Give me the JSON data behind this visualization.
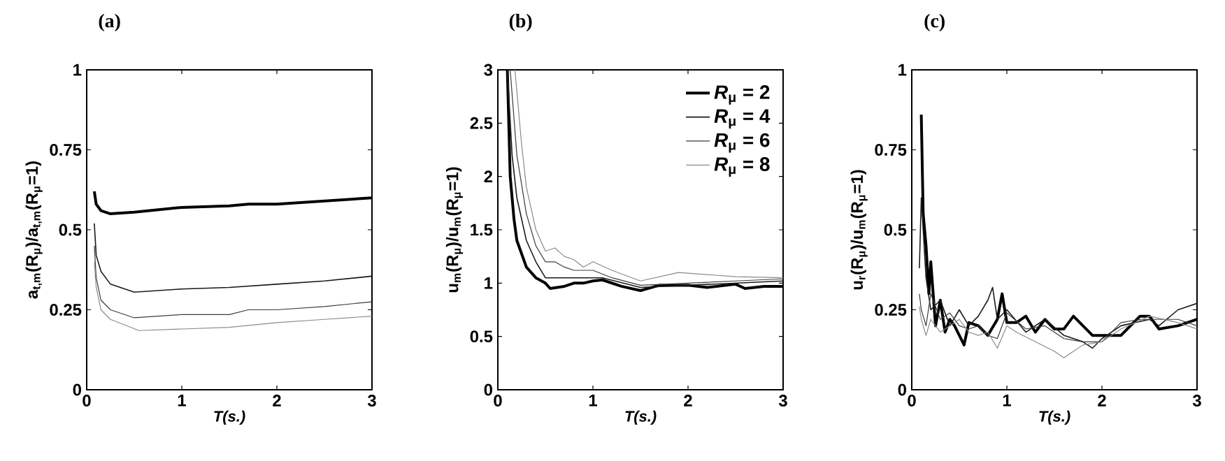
{
  "chart_data": [
    {
      "type": "line",
      "title": "(a)",
      "xlabel": "T(s.)",
      "ylabel": "a$_{t,m}$(R$_{μ}$)/a$_{t,m}$(R$_{μ}$=1)",
      "xlim": [
        0,
        3
      ],
      "ylim": [
        0,
        1
      ],
      "xticks": [
        0,
        1,
        2,
        3
      ],
      "yticks": [
        0,
        0.25,
        0.5,
        0.75,
        1
      ],
      "series": [
        {
          "color": "#000000",
          "x": [
            0.08,
            0.1,
            0.15,
            0.25,
            0.5,
            1,
            1.5,
            1.7,
            2,
            2.5,
            3
          ],
          "values": [
            0.62,
            0.58,
            0.56,
            0.55,
            0.555,
            0.57,
            0.575,
            0.58,
            0.58,
            0.59,
            0.6
          ]
        },
        {
          "color": "#1a1a1a",
          "x": [
            0.08,
            0.1,
            0.15,
            0.25,
            0.5,
            0.75,
            1,
            1.5,
            2,
            2.5,
            3
          ],
          "values": [
            0.52,
            0.42,
            0.37,
            0.33,
            0.305,
            0.31,
            0.315,
            0.32,
            0.33,
            0.34,
            0.355
          ]
        },
        {
          "color": "#3c3c3c",
          "x": [
            0.08,
            0.1,
            0.15,
            0.25,
            0.5,
            1,
            1.5,
            1.7,
            2,
            2.5,
            3
          ],
          "values": [
            0.45,
            0.35,
            0.28,
            0.25,
            0.225,
            0.235,
            0.235,
            0.25,
            0.25,
            0.26,
            0.275
          ]
        },
        {
          "color": "#8a8a8a",
          "x": [
            0.08,
            0.1,
            0.15,
            0.25,
            0.55,
            1,
            1.5,
            2,
            2.5,
            3
          ],
          "values": [
            0.4,
            0.32,
            0.25,
            0.22,
            0.185,
            0.19,
            0.195,
            0.21,
            0.22,
            0.23
          ]
        }
      ]
    },
    {
      "type": "line",
      "title": "(b)",
      "xlabel": "T(s.)",
      "ylabel": "u$_{m}$(R$_{μ}$)/u$_{m}$(R$_{μ}$=1)",
      "xlim": [
        0,
        3
      ],
      "ylim": [
        0,
        3
      ],
      "xticks": [
        0,
        1,
        2,
        3
      ],
      "yticks": [
        0,
        0.5,
        1,
        1.5,
        2,
        2.5,
        3
      ],
      "legend": "top right",
      "series": [
        {
          "name": "*R*$_{μ}$ = 2",
          "color": "#000000",
          "x": [
            0.1,
            0.13,
            0.17,
            0.2,
            0.3,
            0.4,
            0.5,
            0.55,
            0.7,
            0.8,
            0.9,
            1,
            1.1,
            1.3,
            1.5,
            1.7,
            2,
            2.2,
            2.5,
            2.6,
            2.8,
            3
          ],
          "values": [
            3,
            2,
            1.6,
            1.4,
            1.15,
            1.05,
            1.0,
            0.95,
            0.97,
            1.0,
            1.0,
            1.02,
            1.03,
            0.97,
            0.93,
            0.98,
            0.98,
            0.96,
            0.99,
            0.95,
            0.97,
            0.97
          ]
        },
        {
          "name": "*R*$_{μ}$ = 4",
          "color": "#1a1a1a",
          "x": [
            0.1,
            0.15,
            0.2,
            0.3,
            0.4,
            0.5,
            0.6,
            0.8,
            1,
            1.1,
            1.5,
            2,
            2.5,
            3
          ],
          "values": [
            3,
            2.2,
            1.8,
            1.4,
            1.2,
            1.05,
            1.05,
            1.05,
            1.05,
            1.05,
            0.96,
            0.98,
            1.0,
            1.02
          ]
        },
        {
          "name": "*R*$_{μ}$ = 6",
          "color": "#3c3c3c",
          "x": [
            0.13,
            0.2,
            0.3,
            0.4,
            0.5,
            0.6,
            0.7,
            0.8,
            1,
            1.2,
            1.5,
            2,
            2.5,
            3
          ],
          "values": [
            3,
            2.2,
            1.65,
            1.35,
            1.2,
            1.2,
            1.15,
            1.12,
            1.12,
            1.05,
            0.98,
            1.0,
            1.02,
            1.04
          ]
        },
        {
          "name": "*R*$_{μ}$ = 8",
          "color": "#8a8a8a",
          "x": [
            0.18,
            0.25,
            0.3,
            0.4,
            0.5,
            0.6,
            0.7,
            0.8,
            0.9,
            1,
            1.2,
            1.5,
            1.9,
            2.2,
            2.5,
            3
          ],
          "values": [
            3,
            2.3,
            1.9,
            1.5,
            1.3,
            1.33,
            1.25,
            1.22,
            1.15,
            1.2,
            1.12,
            1.02,
            1.1,
            1.08,
            1.06,
            1.05
          ]
        }
      ]
    },
    {
      "type": "line",
      "title": "(c)",
      "xlabel": "T(s.)",
      "ylabel": "u$_{r}$(R$_{μ}$)/u$_{m}$(R$_{μ}$=1)",
      "xlim": [
        0,
        3
      ],
      "ylim": [
        0,
        1
      ],
      "xticks": [
        0,
        1,
        2,
        3
      ],
      "yticks": [
        0,
        0.25,
        0.5,
        0.75,
        1
      ],
      "series": [
        {
          "color": "#000000",
          "x": [
            0.1,
            0.12,
            0.15,
            0.18,
            0.2,
            0.25,
            0.3,
            0.35,
            0.4,
            0.45,
            0.5,
            0.55,
            0.6,
            0.7,
            0.8,
            0.9,
            0.95,
            1,
            1.1,
            1.2,
            1.3,
            1.4,
            1.5,
            1.6,
            1.7,
            1.8,
            1.9,
            2,
            2.2,
            2.4,
            2.5,
            2.6,
            2.8,
            3
          ],
          "values": [
            0.86,
            0.55,
            0.45,
            0.3,
            0.4,
            0.2,
            0.28,
            0.18,
            0.22,
            0.2,
            0.17,
            0.14,
            0.21,
            0.2,
            0.17,
            0.22,
            0.3,
            0.21,
            0.21,
            0.23,
            0.18,
            0.22,
            0.19,
            0.19,
            0.23,
            0.2,
            0.17,
            0.17,
            0.17,
            0.23,
            0.23,
            0.19,
            0.2,
            0.22
          ]
        },
        {
          "color": "#1a1a1a",
          "x": [
            0.08,
            0.1,
            0.15,
            0.2,
            0.3,
            0.4,
            0.5,
            0.6,
            0.7,
            0.8,
            0.85,
            0.9,
            1,
            1.2,
            1.4,
            1.6,
            1.8,
            1.9,
            2,
            2.2,
            2.5,
            2.6,
            2.8,
            3
          ],
          "values": [
            0.38,
            0.6,
            0.35,
            0.25,
            0.28,
            0.2,
            0.25,
            0.2,
            0.23,
            0.28,
            0.32,
            0.22,
            0.25,
            0.18,
            0.22,
            0.17,
            0.15,
            0.13,
            0.16,
            0.2,
            0.22,
            0.2,
            0.25,
            0.27
          ]
        },
        {
          "color": "#3c3c3c",
          "x": [
            0.08,
            0.1,
            0.15,
            0.2,
            0.3,
            0.4,
            0.5,
            0.6,
            0.7,
            0.8,
            0.9,
            1,
            1.2,
            1.4,
            1.6,
            1.8,
            2,
            2.2,
            2.4,
            2.6,
            2.8,
            3
          ],
          "values": [
            0.3,
            0.25,
            0.2,
            0.3,
            0.22,
            0.24,
            0.2,
            0.19,
            0.2,
            0.17,
            0.16,
            0.24,
            0.19,
            0.2,
            0.16,
            0.15,
            0.15,
            0.21,
            0.22,
            0.22,
            0.22,
            0.2
          ]
        },
        {
          "color": "#8a8a8a",
          "x": [
            0.08,
            0.1,
            0.15,
            0.2,
            0.3,
            0.4,
            0.5,
            0.6,
            0.7,
            0.8,
            0.9,
            1,
            1.1,
            1.3,
            1.5,
            1.6,
            1.8,
            2,
            2.2,
            2.5,
            2.8,
            3
          ],
          "values": [
            0.26,
            0.22,
            0.17,
            0.22,
            0.18,
            0.2,
            0.22,
            0.18,
            0.17,
            0.18,
            0.13,
            0.2,
            0.18,
            0.15,
            0.12,
            0.1,
            0.14,
            0.15,
            0.19,
            0.23,
            0.21,
            0.19
          ]
        }
      ]
    }
  ]
}
